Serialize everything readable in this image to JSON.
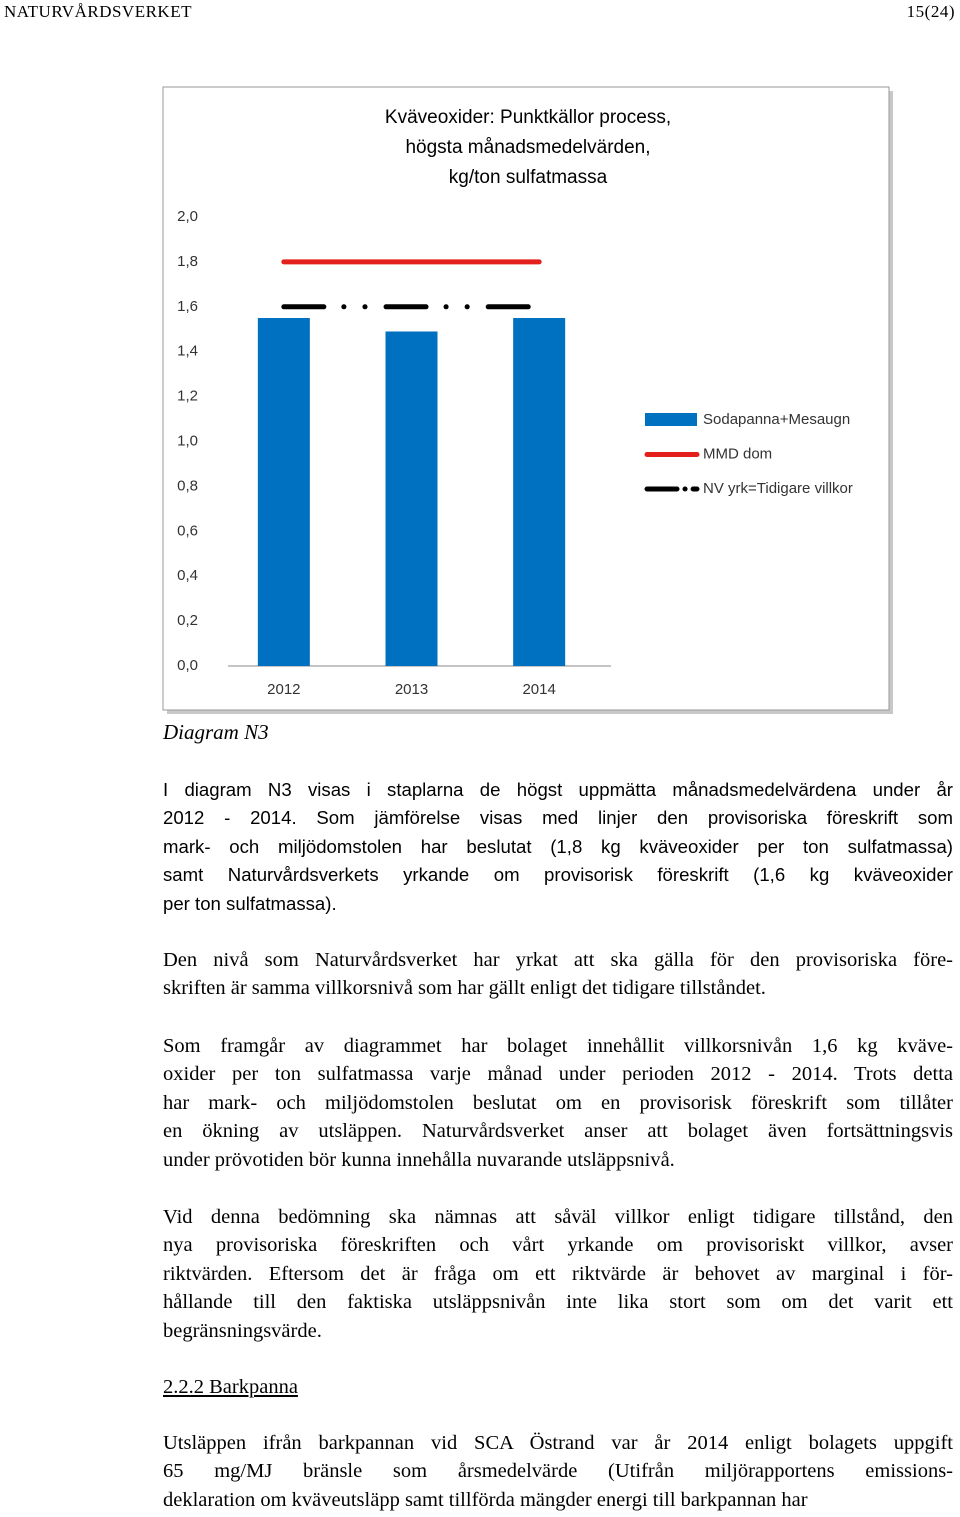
{
  "header": {
    "org": "NATURVÅRDSVERKET",
    "page": "15(24)"
  },
  "chart_data": {
    "type": "bar",
    "title": [
      "Kväveoxider: Punktkällor process,",
      "högsta månadsmedelvärden,",
      "kg/ton sulfatmassa"
    ],
    "categories": [
      "2012",
      "2013",
      "2014"
    ],
    "series": [
      {
        "name": "Sodapanna+Mesaugn",
        "type": "bar",
        "color": "#0070c0",
        "values": [
          1.55,
          1.49,
          1.55
        ]
      },
      {
        "name": "MMD dom",
        "type": "line",
        "color": "#e3201b",
        "values": [
          1.8,
          1.8,
          1.8
        ]
      },
      {
        "name": "NV yrk=Tidigare villkor",
        "type": "line",
        "line_style": "dash-dot",
        "color": "#000000",
        "values": [
          1.6,
          1.6,
          1.6
        ]
      }
    ],
    "ylim": [
      0,
      2
    ],
    "yticks": [
      {
        "value": 0,
        "label": "0,0"
      },
      {
        "value": 0.2,
        "label": "0,2"
      },
      {
        "value": 0.4,
        "label": "0,4"
      },
      {
        "value": 0.6,
        "label": "0,6"
      },
      {
        "value": 0.8,
        "label": "0,8"
      },
      {
        "value": 1.0,
        "label": "1,0"
      },
      {
        "value": 1.2,
        "label": "1,2"
      },
      {
        "value": 1.4,
        "label": "1,4"
      },
      {
        "value": 1.6,
        "label": "1,6"
      },
      {
        "value": 1.8,
        "label": "1,8"
      },
      {
        "value": 2.0,
        "label": "2,0"
      }
    ],
    "grid": false,
    "legend": "right"
  },
  "caption": "Diagram N3",
  "paragraphs": [
    [
      "I diagram N3 visas i staplarna de högst uppmätta månadsmedelvärdena under år",
      "2012 - 2014. Som jämförelse visas med linjer den provisoriska föreskrift som",
      "mark- och miljödomstolen har beslutat (1,8 kg kväveoxider per ton sulfatmassa)",
      "samt Naturvårdsverkets yrkande om provisorisk föreskrift (1,6 kg kväveoxider",
      "per ton sulfatmassa)."
    ],
    [
      "Den nivå som Naturvårdsverket har yrkat att ska gälla för den provisoriska före-",
      "skriften är samma villkorsnivå som har gällt enligt det tidigare tillståndet."
    ],
    [
      "Som framgår av diagrammet har bolaget innehållit villkorsnivån 1,6 kg kväve-",
      "oxider per ton sulfatmassa varje månad under perioden 2012 - 2014. Trots detta",
      "har mark- och miljödomstolen beslutat om en provisorisk föreskrift som tillåter",
      "en ökning av utsläppen. Naturvårdsverket anser att bolaget även fortsättningsvis",
      "under prövotiden bör kunna innehålla nuvarande utsläppsnivå."
    ],
    [
      "Vid denna bedömning ska nämnas att såväl villkor enligt tidigare tillstånd, den",
      "nya provisoriska föreskriften och vårt yrkande om provisoriskt villkor, avser",
      "riktvärden. Eftersom det är fråga om ett riktvärde är behovet av marginal i för-",
      "hållande till den faktiska utsläppsnivån inte lika stort som om det varit ett",
      "begränsningsvärde."
    ]
  ],
  "heading": "2.2.2 Barkpanna",
  "paragraphs_after": [
    [
      "Utsläppen ifrån barkpannan vid SCA Östrand var år 2014 enligt bolagets uppgift",
      "65 mg/MJ bränsle som årsmedelvärde (Utifrån miljörapportens emissions-",
      "deklaration om kväveutsläpp samt tillförda mängder energi till barkpannan har"
    ]
  ]
}
